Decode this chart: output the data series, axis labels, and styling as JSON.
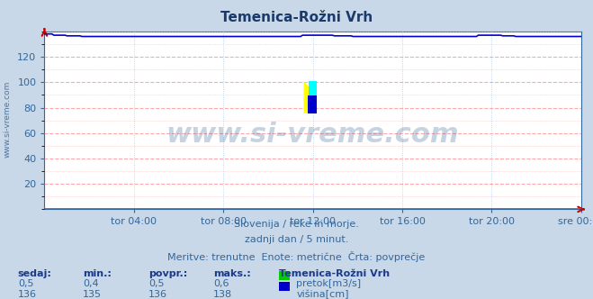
{
  "title": "Temenica-Rožni Vrh",
  "title_color": "#1a3a6b",
  "bg_color": "#c8d8e8",
  "plot_bg_color": "#ffffff",
  "grid_h_color": "#ffaaaa",
  "grid_v_color": "#aaccee",
  "ylim": [
    0,
    140
  ],
  "yticks": [
    20,
    40,
    60,
    80,
    100,
    120
  ],
  "xtick_labels": [
    "tor 04:00",
    "tor 08:00",
    "tor 12:00",
    "tor 16:00",
    "tor 20:00",
    "sre 00:00"
  ],
  "axis_color": "#336699",
  "tick_color": "#336699",
  "watermark_text": "www.si-vreme.com",
  "watermark_color": "#336699",
  "watermark_alpha": 0.28,
  "watermark_fontsize": 22,
  "sidebar_text": "www.si-vreme.com",
  "sidebar_color": "#336699",
  "subtitle_lines": [
    "Slovenija / reke in morje.",
    "zadnji dan / 5 minut.",
    "Meritve: trenutne  Enote: metrične  Črta: povprečje"
  ],
  "subtitle_color": "#336699",
  "subtitle_fontsize": 8,
  "table_headers": [
    "sedaj:",
    "min.:",
    "povpr.:",
    "maks.:"
  ],
  "table_header_color": "#1a3a8a",
  "station_name": "Temenica-Rožni Vrh",
  "pretok_values": [
    "0,5",
    "0,4",
    "0,5",
    "0,6"
  ],
  "visina_values": [
    "136",
    "135",
    "136",
    "138"
  ],
  "pretok_color": "#00cc00",
  "visina_color": "#0000cc",
  "arrow_color": "#cc0000",
  "pretok_line_color": "#00aa00",
  "visina_line_color": "#0000cc",
  "n_points": 288
}
